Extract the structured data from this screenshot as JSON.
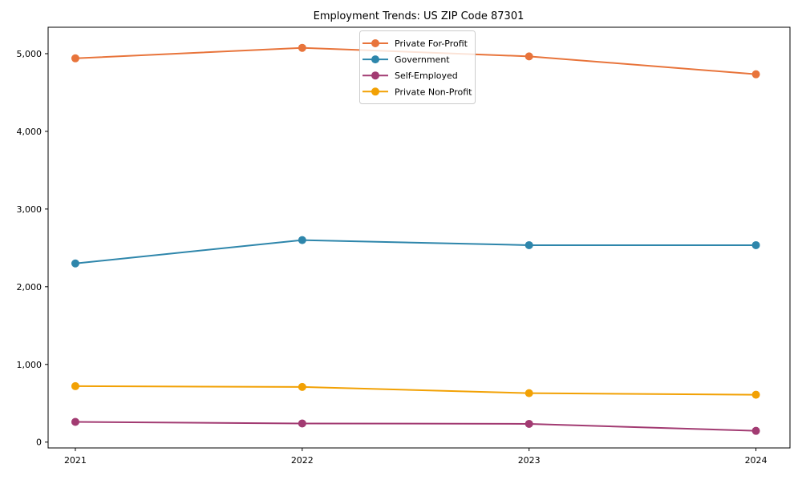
{
  "page": {
    "background": "#ffffff"
  },
  "chart_data": {
    "type": "line",
    "title": "Employment Trends: US ZIP Code 87301",
    "x": [
      2021,
      2022,
      2023,
      2024
    ],
    "xtick_labels": [
      "2021",
      "2022",
      "2023",
      "2024"
    ],
    "yticks": [
      0,
      1000,
      2000,
      3000,
      4000,
      5000
    ],
    "ytick_labels": [
      "0",
      "1,000",
      "2,000",
      "3,000",
      "4,000",
      "5,000"
    ],
    "xlim": [
      2020.88,
      2024.15
    ],
    "ylim": [
      -75,
      5340
    ],
    "xlabel": "",
    "ylabel": "",
    "grid": false,
    "legend_position": "upper center",
    "series": [
      {
        "name": "Private For-Profit",
        "color": "#E8743B",
        "values": [
          4940,
          5075,
          4965,
          4735
        ]
      },
      {
        "name": "Government",
        "color": "#2E86AB",
        "values": [
          2300,
          2600,
          2535,
          2535
        ]
      },
      {
        "name": "Self-Employed",
        "color": "#A23B72",
        "values": [
          260,
          240,
          235,
          145
        ]
      },
      {
        "name": "Private Non-Profit",
        "color": "#F2A104",
        "values": [
          720,
          710,
          630,
          610
        ]
      }
    ]
  }
}
